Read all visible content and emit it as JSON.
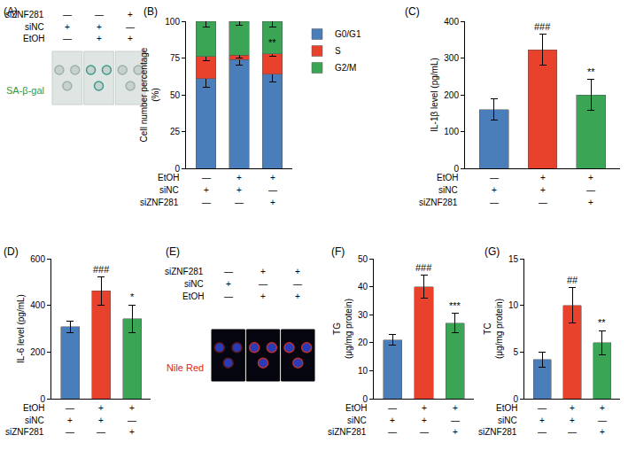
{
  "chart_data": [
    {
      "panel": "(A)",
      "type": "image",
      "stain": "SA-β-gal",
      "color": "#2e9a3e",
      "conditions": [
        {
          "name": "siZNF281",
          "signs": [
            "—",
            "—",
            "+"
          ]
        },
        {
          "name": "siNC",
          "signs": [
            "+",
            "+",
            "—"
          ]
        },
        {
          "name": "EtOH",
          "signs": [
            "—",
            "+",
            "+"
          ]
        }
      ]
    },
    {
      "panel": "(B)",
      "type": "bar",
      "stacked": true,
      "categories": [
        null,
        null,
        null
      ],
      "ylabel": "Cell number percentage (%)",
      "ylim": [
        0,
        100
      ],
      "yticks": [
        0,
        25,
        50,
        75,
        100
      ],
      "legend": "right",
      "tick_labels": "y",
      "conditions": [
        {
          "name": "EtOH",
          "signs": [
            "—",
            "+",
            "+"
          ]
        },
        {
          "name": "siNC",
          "signs": [
            "+",
            "+",
            "—"
          ]
        },
        {
          "name": "siZNF281",
          "signs": [
            "—",
            "—",
            "+"
          ]
        }
      ],
      "series": [
        {
          "name": "G0/G1",
          "color": "#4a7ebb",
          "values": [
            61,
            74,
            64
          ],
          "errors": [
            6,
            4,
            5
          ],
          "annotations": [
            null,
            null,
            null
          ]
        },
        {
          "name": "S",
          "color": "#e8412c",
          "values": [
            15,
            3,
            14
          ],
          "errors": [
            3,
            2,
            2
          ],
          "annotations": [
            null,
            null,
            "**"
          ]
        },
        {
          "name": "G2/M",
          "color": "#3aa655",
          "values": [
            24,
            23,
            22
          ],
          "errors": [
            4,
            3,
            4
          ],
          "annotations": [
            null,
            null,
            null
          ]
        }
      ]
    },
    {
      "panel": "(C)",
      "type": "bar",
      "categories": [
        null,
        null,
        null
      ],
      "ylabel": "IL-1β level (pg/mL)",
      "ylim": [
        0,
        400
      ],
      "yticks": [
        0,
        100,
        200,
        300,
        400
      ],
      "tick_labels": "y",
      "values": [
        160,
        322,
        200
      ],
      "errors": [
        28,
        42,
        42
      ],
      "annotations": [
        null,
        "###",
        "**"
      ],
      "colors": [
        "#4a7ebb",
        "#e8412c",
        "#3aa655"
      ],
      "conditions": [
        {
          "name": "EtOH",
          "signs": [
            "—",
            "+",
            "+"
          ]
        },
        {
          "name": "siNC",
          "signs": [
            "+",
            "+",
            "—"
          ]
        },
        {
          "name": "siZNF281",
          "signs": [
            "—",
            "—",
            "+"
          ]
        }
      ]
    },
    {
      "panel": "(D)",
      "type": "bar",
      "categories": [
        null,
        null,
        null
      ],
      "ylabel": "IL-6 level (pg/mL)",
      "ylim": [
        0,
        600
      ],
      "yticks": [
        0,
        200,
        400,
        600
      ],
      "tick_labels": "y",
      "values": [
        308,
        462,
        342
      ],
      "errors": [
        25,
        60,
        60
      ],
      "annotations": [
        null,
        "###",
        "*"
      ],
      "colors": [
        "#4a7ebb",
        "#e8412c",
        "#3aa655"
      ],
      "conditions": [
        {
          "name": "EtOH",
          "signs": [
            "—",
            "+",
            "+"
          ]
        },
        {
          "name": "siNC",
          "signs": [
            "+",
            "+",
            "—"
          ]
        },
        {
          "name": "siZNF281",
          "signs": [
            "—",
            "—",
            "+"
          ]
        }
      ]
    },
    {
      "panel": "(E)",
      "type": "image",
      "stain": "Nile Red",
      "color": "#e0241b",
      "conditions": [
        {
          "name": "siZNF281",
          "signs": [
            "—",
            "+",
            "+"
          ]
        },
        {
          "name": "siNC",
          "signs": [
            "+",
            "—",
            "—"
          ]
        },
        {
          "name": "EtOH",
          "signs": [
            "—",
            "+",
            "+"
          ]
        }
      ]
    },
    {
      "panel": "(F)",
      "type": "bar",
      "categories": [
        null,
        null,
        null
      ],
      "ylabel": "TG (μg/mg protein)",
      "ylim": [
        0,
        50
      ],
      "yticks": [
        0,
        10,
        20,
        30,
        40,
        50
      ],
      "tick_labels": "y",
      "values": [
        21,
        40,
        27
      ],
      "errors": [
        2,
        4,
        3.5
      ],
      "annotations": [
        null,
        "###",
        "***"
      ],
      "colors": [
        "#4a7ebb",
        "#e8412c",
        "#3aa655"
      ],
      "conditions": [
        {
          "name": "EtOH",
          "signs": [
            "—",
            "+",
            "+"
          ]
        },
        {
          "name": "siNC",
          "signs": [
            "+",
            "+",
            "—"
          ]
        },
        {
          "name": "siZNF281",
          "signs": [
            "—",
            "—",
            "+"
          ]
        }
      ]
    },
    {
      "panel": "(G)",
      "type": "bar",
      "categories": [
        null,
        null,
        null
      ],
      "ylabel": "TC (μg/mg protein)",
      "ylim": [
        0,
        15
      ],
      "yticks": [
        0,
        5,
        10,
        15
      ],
      "tick_labels": "y",
      "values": [
        4.2,
        10,
        6
      ],
      "errors": [
        0.8,
        1.9,
        1.3
      ],
      "annotations": [
        null,
        "##",
        "**"
      ],
      "colors": [
        "#4a7ebb",
        "#e8412c",
        "#3aa655"
      ],
      "conditions": [
        {
          "name": "EtOH",
          "signs": [
            "—",
            "+",
            "+"
          ]
        },
        {
          "name": "siNC",
          "signs": [
            "+",
            "+",
            "—"
          ]
        },
        {
          "name": "siZNF281",
          "signs": [
            "—",
            "—",
            "+"
          ]
        }
      ]
    }
  ]
}
